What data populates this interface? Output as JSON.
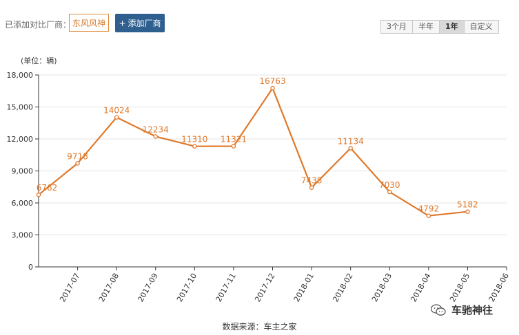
{
  "toolbar": {
    "compare_label": "已添加对比厂商：",
    "brand_tag": "东风风神",
    "add_button_icon": "plus-icon",
    "add_button_label": "添加厂商",
    "range_options": [
      "3个月",
      "半年",
      "1年",
      "自定义"
    ],
    "range_selected": "1年"
  },
  "chart_data": {
    "type": "line",
    "unit_label": "(单位：辆)",
    "categories": [
      "2017-07",
      "2017-08",
      "2017-09",
      "2017-10",
      "2017-11",
      "2017-12",
      "2018-01",
      "2018-02",
      "2018-03",
      "2018-04",
      "2018-05",
      "2018-06"
    ],
    "series": [
      {
        "values": [
          6762,
          9718,
          14024,
          12234,
          11310,
          11321,
          16763,
          7438,
          11134,
          7030,
          4792,
          5182
        ]
      }
    ],
    "data_labels": [
      "6762",
      "9718",
      "14024",
      "12234",
      "11310",
      "11321",
      "16763",
      "7438",
      "11134",
      "7030",
      "4792",
      "5182"
    ],
    "y_ticks": [
      "0",
      "3,000",
      "6,000",
      "9,000",
      "12,000",
      "15,000",
      "18,000"
    ],
    "y_tick_values": [
      0,
      3000,
      6000,
      9000,
      12000,
      15000,
      18000
    ],
    "ylim": [
      0,
      18000
    ],
    "grid": true,
    "line_color": "#e0782a",
    "label_color": "#e0782a"
  },
  "footer": {
    "source": "数据来源：车主之家"
  },
  "watermark": {
    "icon": "wechat-icon",
    "account": "车驰神往"
  }
}
